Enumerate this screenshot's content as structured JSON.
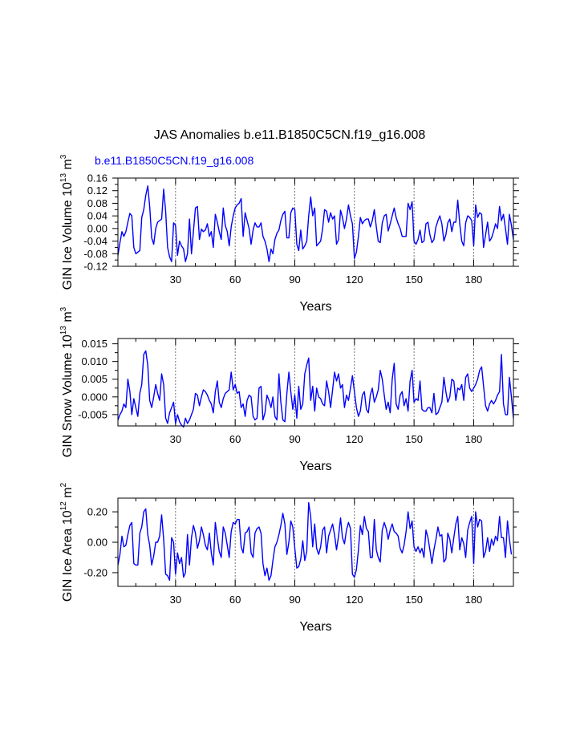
{
  "title": "JAS Anomalies b.e11.B1850C5CN.f19_g16.008",
  "series_label": "b.e11.B1850C5CN.f19_g16.008",
  "colors": {
    "line": "#0000ff",
    "series_label": "#0000ff",
    "axis": "#000000",
    "grid": "#555555"
  },
  "chart_data": [
    {
      "type": "line",
      "name": "ice-volume",
      "ylabel": "GIN Ice Volume 10",
      "ylabel_exp": "13",
      "ylabel_unit": " m",
      "ylabel_unit_exp": "3",
      "xlabel": "Years",
      "xlim": [
        1,
        200
      ],
      "ylim": [
        -0.12,
        0.16
      ],
      "ytick_values": [
        -0.12,
        -0.08,
        -0.04,
        0.0,
        0.04,
        0.08,
        0.12,
        0.16
      ],
      "ytick_labels": [
        "-0.12",
        "-0.08",
        "-0.04",
        "0.00",
        "0.04",
        "0.08",
        "0.12",
        "0.16"
      ],
      "xtick_values": [
        30,
        60,
        90,
        120,
        150,
        180
      ],
      "xtick_labels": [
        "30",
        "60",
        "90",
        "120",
        "150",
        "180"
      ],
      "grid_x": [
        30,
        60,
        90,
        120,
        150,
        180
      ],
      "series": [
        {
          "name": "b.e11.B1850C5CN.f19_g16.008",
          "values": [
            -0.085,
            -0.045,
            -0.01,
            -0.025,
            -0.01,
            0.02,
            0.048,
            0.04,
            -0.06,
            -0.08,
            -0.075,
            -0.07,
            0.035,
            0.06,
            0.105,
            0.135,
            0.07,
            -0.03,
            -0.05,
            0.0,
            0.02,
            0.025,
            0.03,
            0.125,
            0.055,
            -0.06,
            -0.09,
            -0.105,
            0.018,
            0.01,
            -0.085,
            -0.04,
            -0.055,
            -0.065,
            -0.105,
            -0.08,
            0.03,
            -0.08,
            -0.01,
            0.065,
            0.07,
            -0.035,
            -0.002,
            -0.01,
            -0.005,
            0.015,
            -0.025,
            -0.01,
            -0.06,
            0.045,
            0.02,
            -0.01,
            -0.035,
            0.065,
            0.01,
            -0.01,
            -0.055,
            0.005,
            0.04,
            0.065,
            0.075,
            0.08,
            0.095,
            -0.025,
            0.05,
            0.025,
            0.0,
            -0.05,
            -0.005,
            0.018,
            0.005,
            0.005,
            0.018,
            -0.025,
            -0.04,
            -0.065,
            -0.105,
            -0.065,
            -0.08,
            -0.035,
            -0.015,
            -0.005,
            0.025,
            0.045,
            0.055,
            -0.03,
            -0.03,
            0.05,
            0.065,
            0.06,
            -0.05,
            -0.07,
            -0.005,
            -0.065,
            -0.055,
            -0.04,
            0.04,
            0.1,
            0.04,
            0.065,
            -0.055,
            -0.048,
            -0.04,
            0.0,
            0.06,
            0.055,
            0.02,
            0.05,
            0.03,
            0.04,
            -0.05,
            -0.035,
            0.058,
            0.035,
            0.0,
            0.03,
            0.075,
            0.04,
            0.015,
            -0.095,
            -0.075,
            -0.025,
            0.035,
            0.015,
            0.025,
            0.03,
            0.03,
            0.005,
            0.025,
            0.06,
            0.005,
            -0.04,
            -0.045,
            0.018,
            0.04,
            0.045,
            -0.008,
            0.015,
            0.04,
            0.065,
            0.035,
            0.015,
            0.0,
            -0.025,
            -0.025,
            -0.025,
            0.08,
            0.06,
            0.085,
            -0.04,
            -0.05,
            -0.035,
            -0.005,
            -0.045,
            -0.04,
            0.015,
            0.02,
            -0.02,
            -0.045,
            -0.035,
            0.005,
            0.025,
            0.04,
            0.015,
            -0.04,
            -0.02,
            0.018,
            0.03,
            -0.01,
            0.02,
            0.02,
            0.09,
            0.015,
            -0.04,
            -0.055,
            0.018,
            0.04,
            0.035,
            0.025,
            -0.055,
            0.075,
            0.035,
            0.05,
            0.045,
            -0.06,
            -0.02,
            0.02,
            -0.04,
            -0.03,
            -0.01,
            0.015,
            0.0,
            0.07,
            0.025,
            0.045,
            0.0,
            -0.05,
            0.045,
            0.01,
            -0.035
          ]
        }
      ]
    },
    {
      "type": "line",
      "name": "snow-volume",
      "ylabel": "GIN Snow Volume 10",
      "ylabel_exp": "13",
      "ylabel_unit": " m",
      "ylabel_unit_exp": "3",
      "xlabel": "Years",
      "xlim": [
        1,
        200
      ],
      "ylim": [
        -0.0082,
        0.0165
      ],
      "ytick_values": [
        -0.005,
        0.0,
        0.005,
        0.01,
        0.015
      ],
      "ytick_labels": [
        "-0.005",
        "0.000",
        "0.005",
        "0.010",
        "0.015"
      ],
      "xtick_values": [
        30,
        60,
        90,
        120,
        150,
        180
      ],
      "xtick_labels": [
        "30",
        "60",
        "90",
        "120",
        "150",
        "180"
      ],
      "grid_x": [
        30,
        60,
        90,
        120,
        150,
        180
      ],
      "series": [
        {
          "name": "b.e11.B1850C5CN.f19_g16.008",
          "values": [
            -0.0065,
            -0.005,
            -0.004,
            -0.002,
            -0.003,
            0.005,
            0.0015,
            -0.005,
            -0.0005,
            -0.003,
            -0.0055,
            0.001,
            0.0035,
            0.012,
            0.013,
            0.009,
            -0.001,
            -0.003,
            0.0,
            0.0035,
            0.001,
            -0.001,
            0.0065,
            0.0035,
            -0.006,
            -0.0075,
            -0.0045,
            -0.003,
            -0.0015,
            -0.0075,
            -0.005,
            -0.007,
            -0.008,
            -0.0085,
            -0.006,
            -0.0075,
            -0.0065,
            -0.005,
            -0.0035,
            0.001,
            0.0005,
            -0.0025,
            0.0,
            0.002,
            0.0015,
            0.0005,
            -0.001,
            -0.002,
            -0.0045,
            0.0015,
            0.0045,
            -0.0015,
            -0.003,
            -0.0005,
            0.001,
            0.0015,
            0.002,
            0.007,
            0.002,
            0.0035,
            0.001,
            0.0015,
            -0.003,
            -0.002,
            -0.0055,
            -0.001,
            0.0005,
            0.0,
            -0.0055,
            -0.0065,
            -0.006,
            0.0025,
            0.003,
            -0.0065,
            -0.0045,
            0.0005,
            -0.001,
            -0.003,
            0.0,
            -0.0055,
            -0.0065,
            0.0065,
            -0.0015,
            -0.0065,
            -0.007,
            0.001,
            0.007,
            0.0015,
            -0.0035,
            0.0005,
            -0.006,
            0.003,
            -0.0035,
            -0.002,
            0.0065,
            0.009,
            0.011,
            -0.001,
            0.003,
            -0.004,
            0.0025,
            0.0,
            -0.0005,
            -0.002,
            -0.0025,
            0.0045,
            0.0015,
            -0.003,
            0.002,
            0.007,
            0.0045,
            0.0065,
            0.0025,
            0.0035,
            -0.003,
            0.0005,
            -0.001,
            0.0025,
            0.006,
            0.0015,
            -0.003,
            -0.0055,
            -0.004,
            0.0005,
            0.0015,
            -0.0035,
            -0.0045,
            0.0005,
            0.0025,
            -0.0015,
            0.0,
            0.002,
            0.0075,
            0.005,
            0.0005,
            -0.0035,
            -0.0015,
            -0.0045,
            0.005,
            0.0095,
            -0.002,
            -0.0035,
            0.0005,
            0.0015,
            -0.0025,
            -0.0005,
            -0.004,
            0.0045,
            0.0075,
            -0.0015,
            -0.0005,
            -0.001,
            0.0045,
            -0.0035,
            -0.004,
            -0.004,
            -0.003,
            -0.003,
            -0.0045,
            0.001,
            -0.005,
            -0.0045,
            -0.003,
            -0.0015,
            0.0055,
            0.0015,
            -0.0015,
            0.0,
            0.005,
            0.0045,
            -0.001,
            0.0025,
            0.002,
            0.0035,
            -0.001,
            0.0055,
            0.0065,
            0.0025,
            0.0015,
            0.0025,
            0.0035,
            0.005,
            0.0075,
            0.0085,
            0.003,
            -0.0025,
            -0.004,
            -0.002,
            -0.001,
            -0.002,
            -0.001,
            0.0005,
            0.0015,
            0.012,
            -0.002,
            -0.005,
            -0.005,
            0.0055,
            0.0,
            -0.006
          ]
        }
      ]
    },
    {
      "type": "line",
      "name": "ice-area",
      "ylabel": "GIN Ice Area 10",
      "ylabel_exp": "12",
      "ylabel_unit": " m",
      "ylabel_unit_exp": "2",
      "xlabel": "Years",
      "xlim": [
        1,
        200
      ],
      "ylim": [
        -0.29,
        0.29
      ],
      "ytick_values": [
        -0.2,
        0.0,
        0.2
      ],
      "ytick_labels": [
        "-0.20",
        "0.00",
        "0.20"
      ],
      "xtick_values": [
        30,
        60,
        90,
        120,
        150,
        180
      ],
      "xtick_labels": [
        "30",
        "60",
        "90",
        "120",
        "150",
        "180"
      ],
      "grid_x": [
        30,
        60,
        90,
        120,
        150,
        180
      ],
      "series": [
        {
          "name": "b.e11.B1850C5CN.f19_g16.008",
          "values": [
            -0.15,
            -0.08,
            0.04,
            -0.03,
            -0.02,
            0.05,
            0.11,
            0.13,
            -0.14,
            -0.15,
            -0.15,
            0.06,
            0.1,
            0.2,
            0.22,
            0.05,
            -0.02,
            -0.15,
            -0.09,
            0.0,
            0.0,
            0.04,
            0.18,
            0.02,
            -0.21,
            -0.22,
            -0.25,
            0.03,
            0.0,
            -0.21,
            -0.07,
            -0.14,
            -0.1,
            -0.23,
            -0.2,
            0.05,
            -0.15,
            0.03,
            0.11,
            0.06,
            -0.04,
            0.01,
            0.1,
            0.05,
            -0.02,
            -0.05,
            0.06,
            -0.07,
            -0.15,
            0.13,
            0.03,
            -0.06,
            -0.1,
            0.1,
            0.06,
            -0.02,
            -0.1,
            0.07,
            0.13,
            0.12,
            0.15,
            0.15,
            -0.03,
            -0.07,
            0.06,
            0.07,
            0.1,
            -0.07,
            -0.1,
            0.06,
            0.09,
            0.1,
            0.06,
            -0.14,
            -0.22,
            -0.17,
            -0.25,
            -0.22,
            -0.12,
            -0.03,
            0.0,
            0.05,
            0.11,
            0.19,
            0.12,
            -0.08,
            0.0,
            0.14,
            0.1,
            -0.04,
            -0.17,
            -0.16,
            -0.11,
            0.01,
            -0.12,
            -0.06,
            0.26,
            0.17,
            -0.03,
            0.12,
            -0.04,
            -0.08,
            -0.03,
            0.08,
            0.1,
            -0.07,
            0.04,
            0.08,
            0.12,
            0.05,
            -0.05,
            0.04,
            0.16,
            0.03,
            -0.01,
            0.08,
            0.13,
            0.09,
            -0.21,
            -0.23,
            -0.18,
            -0.05,
            0.11,
            0.05,
            0.17,
            0.09,
            0.07,
            -0.1,
            -0.1,
            0.15,
            -0.05,
            -0.1,
            -0.13,
            0.08,
            0.13,
            0.09,
            0.02,
            0.08,
            0.12,
            0.07,
            0.06,
            0.04,
            -0.04,
            -0.07,
            -0.02,
            0.07,
            0.2,
            0.09,
            0.14,
            -0.03,
            -0.06,
            -0.03,
            -0.07,
            -0.04,
            -0.1,
            0.08,
            0.03,
            -0.05,
            -0.14,
            -0.05,
            0.02,
            0.1,
            0.04,
            0.05,
            -0.13,
            -0.11,
            0.06,
            0.02,
            -0.07,
            0.03,
            0.12,
            0.17,
            -0.05,
            0.03,
            -0.01,
            -0.1,
            0.08,
            0.13,
            0.17,
            -0.14,
            0.2,
            0.1,
            0.15,
            0.14,
            -0.1,
            -0.06,
            0.03,
            -0.06,
            0.02,
            -0.02,
            0.04,
            0.01,
            0.17,
            0.03,
            0.03,
            -0.1,
            0.14,
            0.02,
            -0.08
          ]
        }
      ]
    }
  ]
}
